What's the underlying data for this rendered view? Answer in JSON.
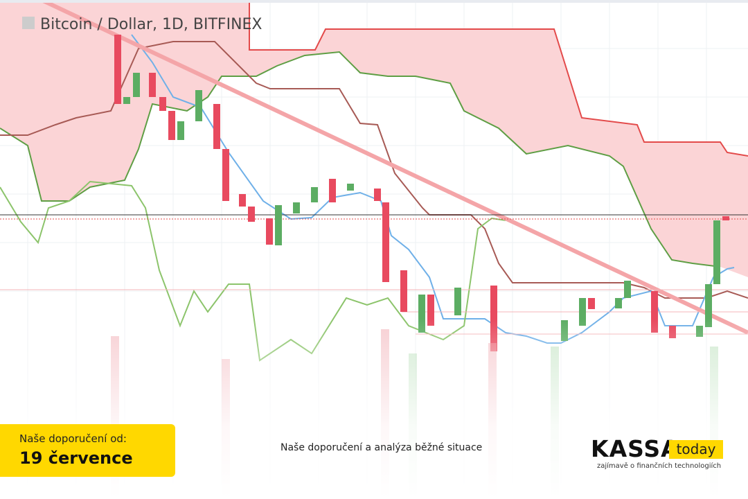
{
  "chart_title": "Bitcoin / Dollar, 1D, BITFINEX",
  "badge": {
    "label": "Naše doporučení od:",
    "date": "19 července"
  },
  "caption": "Naše doporučení a analýza běžné situace",
  "logo": {
    "brand": "KASSA",
    "suffix": "today",
    "tagline": "zajímavě o finančních technologiích"
  }
}
